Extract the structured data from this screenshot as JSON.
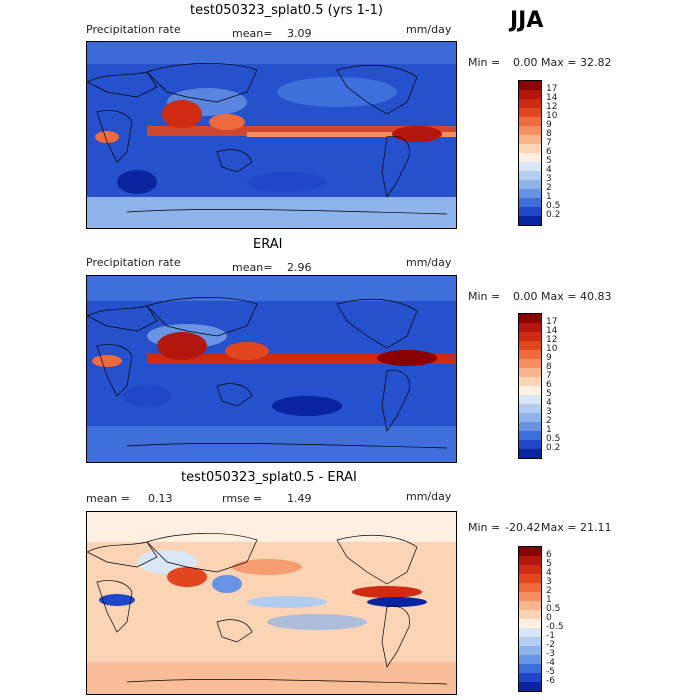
{
  "season": "JJA",
  "panels": [
    {
      "title": "test050323_splat0.5 (yrs 1-1)",
      "left_label": "Precipitation rate",
      "mid_label": "mean=",
      "mid_value": "3.09",
      "units": "mm/day",
      "min_label": "Min =",
      "min_value": "0.00",
      "max_label": "Max =",
      "max_value": "32.82"
    },
    {
      "title": "ERAI",
      "left_label": "Precipitation rate",
      "mid_label": "mean=",
      "mid_value": "2.96",
      "units": "mm/day",
      "min_label": "Min =",
      "min_value": "0.00",
      "max_label": "Max =",
      "max_value": "40.83"
    },
    {
      "title": "test050323_splat0.5 - ERAI",
      "left_label": "mean =",
      "left_value": "0.13",
      "mid_label": "rmse =",
      "mid_value": "1.49",
      "units": "mm/day",
      "min_label": "Min =",
      "min_value": "-20.42",
      "max_label": "Max =",
      "max_value": "21.11"
    }
  ],
  "colorbars": {
    "precip": {
      "labels": [
        "17",
        "14",
        "12",
        "10",
        "9",
        "8",
        "7",
        "6",
        "5",
        "4",
        "3",
        "2",
        "1",
        "0.5",
        "0.2"
      ],
      "colors": [
        "#8b0000",
        "#b2160c",
        "#cf2b12",
        "#e2461f",
        "#ef6a3c",
        "#f58e60",
        "#f9b38d",
        "#fbd4b6",
        "#fdf0e2",
        "#d8e6f6",
        "#b3cdf0",
        "#8db3ea",
        "#6894e3",
        "#3f6fdb",
        "#1f47c8",
        "#0a239e"
      ]
    },
    "diff": {
      "labels": [
        "6",
        "5",
        "4",
        "3",
        "2",
        "1",
        "0.5",
        "0",
        "-0.5",
        "-1",
        "-2",
        "-3",
        "-4",
        "-5",
        "-6"
      ],
      "colors": [
        "#8b0000",
        "#b2160c",
        "#cf2b12",
        "#e2461f",
        "#ef6a3c",
        "#f58e60",
        "#f9b38d",
        "#fbd4b6",
        "#fdf0e2",
        "#d8e6f6",
        "#b3cdf0",
        "#8db3ea",
        "#6894e3",
        "#3f6fdb",
        "#1f47c8",
        "#0a239e"
      ]
    }
  }
}
